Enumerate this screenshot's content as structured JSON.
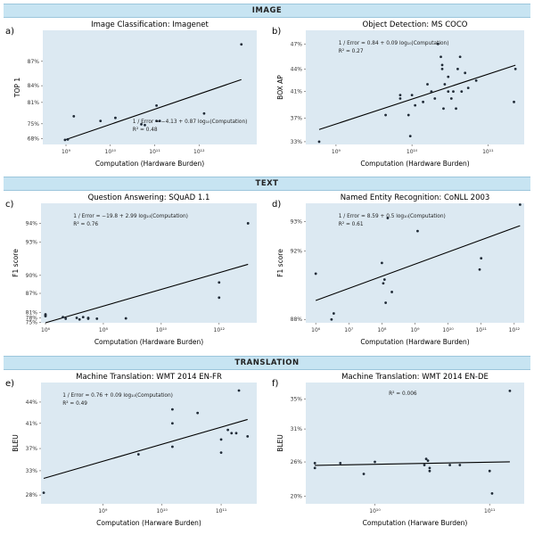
{
  "sections": [
    "IMAGE",
    "TEXT",
    "TRANSLATION"
  ],
  "colors": {
    "plot_bg": "#dce9f2",
    "banner_bg": "#c7e4f2",
    "line": "#000000",
    "point": "#1f2a36"
  },
  "chart_data": [
    {
      "type": "scatter",
      "panel_label": "a)",
      "title": "Image Classification: Imagenet",
      "xlabel": "Computation (Hardware Burden)",
      "ylabel": "TOP 1",
      "x_scale": "log",
      "y_scale": "reciprocal",
      "xlim": [
        300000000.0,
        20000000000000.0
      ],
      "ylim": [
        0.64,
        0.895
      ],
      "x_ticks": [
        {
          "v": 1000000000.0,
          "label": "10⁹"
        },
        {
          "v": 10000000000.0,
          "label": "10¹⁰"
        },
        {
          "v": 100000000000.0,
          "label": "10¹¹"
        },
        {
          "v": 1000000000000.0,
          "label": "10¹²"
        }
      ],
      "y_ticks": [
        {
          "v": 0.68,
          "label": "68%"
        },
        {
          "v": 0.75,
          "label": "75%"
        },
        {
          "v": 0.81,
          "label": "81%"
        },
        {
          "v": 0.84,
          "label": "84%"
        },
        {
          "v": 0.87,
          "label": "87%"
        }
      ],
      "annotation": [
        "1 / Error = −4.13 + 0.87 log₁₀(Computation)",
        "R² = 0.48"
      ],
      "fit": {
        "a": -4.13,
        "b": 0.87
      },
      "x": [
        950000000.0,
        1100000000.0,
        1500000000.0,
        6000000000.0,
        13000000000.0,
        50000000000.0,
        60000000000.0,
        110000000000.0,
        130000000000.0,
        110000000000.0,
        1300000000000.0,
        9000000000000.0
      ],
      "y": [
        0.672,
        0.675,
        0.775,
        0.76,
        0.77,
        0.748,
        0.745,
        0.76,
        0.76,
        0.803,
        0.783,
        0.885
      ]
    },
    {
      "type": "scatter",
      "panel_label": "b)",
      "title": "Object Detection: MS COCO",
      "xlabel": "Computation (Hardware Burden)",
      "ylabel": "BOX AP",
      "x_scale": "log",
      "y_scale": "reciprocal",
      "xlim": [
        400000000.0,
        300000000000.0
      ],
      "ylim": [
        0.325,
        0.485
      ],
      "x_ticks": [
        {
          "v": 1000000000.0,
          "label": "10⁹"
        },
        {
          "v": 10000000000.0,
          "label": "10¹⁰"
        },
        {
          "v": 100000000000.0,
          "label": "10¹¹"
        }
      ],
      "y_ticks": [
        {
          "v": 0.33,
          "label": "33%"
        },
        {
          "v": 0.37,
          "label": "37%"
        },
        {
          "v": 0.41,
          "label": "41%"
        },
        {
          "v": 0.44,
          "label": "44%"
        },
        {
          "v": 0.47,
          "label": "47%"
        }
      ],
      "annotation": [
        "1 / Error = 0.84 + 0.09 log₁₀(Computation)",
        "R² = 0.27"
      ],
      "fit": {
        "a": 0.84,
        "b": 0.09
      },
      "x": [
        600000000.0,
        4500000000.0,
        7000000000.0,
        7000000000.0,
        9000000000.0,
        9500000000.0,
        11000000000.0,
        14000000000.0,
        16000000000.0,
        18000000000.0,
        20000000000.0,
        22000000000.0,
        24000000000.0,
        25000000000.0,
        26000000000.0,
        27000000000.0,
        30000000000.0,
        33000000000.0,
        35000000000.0,
        38000000000.0,
        40000000000.0,
        43000000000.0,
        45000000000.0,
        50000000000.0,
        55000000000.0,
        70000000000.0,
        220000000000.0,
        230000000000.0,
        25000000000.0,
        30000000000.0,
        10000000000.0
      ],
      "y": [
        0.33,
        0.375,
        0.4,
        0.405,
        0.375,
        0.34,
        0.39,
        0.395,
        0.42,
        0.41,
        0.4,
        0.47,
        0.455,
        0.44,
        0.385,
        0.42,
        0.43,
        0.4,
        0.41,
        0.385,
        0.44,
        0.455,
        0.41,
        0.435,
        0.415,
        0.425,
        0.395,
        0.44,
        0.445,
        0.41,
        0.405
      ]
    },
    {
      "type": "scatter",
      "panel_label": "c)",
      "title": "Question Answering: SQuAD 1.1",
      "xlabel": "Computation (Hardware Burden)",
      "ylabel": "F1 score",
      "x_scale": "log",
      "y_scale": "reciprocal",
      "xlim": [
        700000.0,
        20000000000000.0
      ],
      "ylim": [
        0.745,
        0.948
      ],
      "x_ticks": [
        {
          "v": 1000000.0,
          "label": "10⁶"
        },
        {
          "v": 100000000.0,
          "label": "10⁸"
        },
        {
          "v": 10000000000.0,
          "label": "10¹⁰"
        },
        {
          "v": 1000000000000.0,
          "label": "10¹²"
        }
      ],
      "y_ticks": [
        {
          "v": 0.75,
          "label": "75%"
        },
        {
          "v": 0.78,
          "label": "78%"
        },
        {
          "v": 0.81,
          "label": "81%"
        },
        {
          "v": 0.87,
          "label": "87%"
        },
        {
          "v": 0.9,
          "label": "90%"
        },
        {
          "v": 0.93,
          "label": "93%"
        },
        {
          "v": 0.94,
          "label": "94%"
        }
      ],
      "annotation": [
        "1 / Error = −19.8 + 2.99 log₁₀(Computation)",
        "R² = 0.76"
      ],
      "fit": {
        "a": -19.8,
        "b": 2.99
      },
      "x": [
        1000000.0,
        1000000.0,
        1000000.0,
        4000000.0,
        5000000.0,
        12000000.0,
        15000000.0,
        20000000.0,
        30000000.0,
        30000000.0,
        60000000.0,
        600000000.0,
        1000000000000.0,
        1000000000000.0,
        10000000000000.0
      ],
      "y": [
        0.8,
        0.79,
        0.795,
        0.785,
        0.775,
        0.78,
        0.77,
        0.785,
        0.775,
        0.78,
        0.775,
        0.777,
        0.89,
        0.86,
        0.94
      ]
    },
    {
      "type": "scatter",
      "panel_label": "d)",
      "title": "Named Entity Recognition: CoNLL 2003",
      "xlabel": "Computation (Hardware Burden)",
      "ylabel": "F1 score",
      "x_scale": "log",
      "y_scale": "reciprocal",
      "xlim": [
        500000.0,
        2000000000000.0
      ],
      "ylim": [
        0.877,
        0.935
      ],
      "x_ticks": [
        {
          "v": 1000000.0,
          "label": "10⁶"
        },
        {
          "v": 10000000.0,
          "label": "10⁷"
        },
        {
          "v": 100000000.0,
          "label": "10⁸"
        },
        {
          "v": 1000000000.0,
          "label": "10⁹"
        },
        {
          "v": 10000000000.0,
          "label": "10¹⁰"
        },
        {
          "v": 100000000000.0,
          "label": "10¹¹"
        },
        {
          "v": 1000000000000.0,
          "label": "10¹²"
        }
      ],
      "y_ticks": [
        {
          "v": 0.88,
          "label": "88%"
        },
        {
          "v": 0.92,
          "label": "92%"
        },
        {
          "v": 0.93,
          "label": "93%"
        }
      ],
      "annotation": [
        "1 / Error = 8.59 + 0.5 log₁₀(Computation)",
        "R² = 0.61"
      ],
      "fit": {
        "a": 8.59,
        "b": 0.5
      },
      "x": [
        1000000.0,
        3000000.0,
        3500000.0,
        100000000.0,
        110000000.0,
        120000000.0,
        130000000.0,
        150000000.0,
        200000000.0,
        1200000000.0,
        90000000000.0,
        100000000000.0,
        1500000000000.0
      ],
      "y": [
        0.91,
        0.88,
        0.885,
        0.915,
        0.905,
        0.907,
        0.893,
        0.931,
        0.9,
        0.927,
        0.912,
        0.917,
        0.935
      ]
    },
    {
      "type": "scatter",
      "panel_label": "e)",
      "title": "Machine Translation: WMT 2014 EN-FR",
      "xlabel": "Computation (Harware Burden)",
      "ylabel": "BLEU",
      "x_scale": "log",
      "y_scale": "reciprocal",
      "xlim": [
        90000000.0,
        400000000000.0
      ],
      "ylim": [
        0.26,
        0.465
      ],
      "x_ticks": [
        {
          "v": 1000000000.0,
          "label": "10⁹"
        },
        {
          "v": 10000000000.0,
          "label": "10¹⁰"
        },
        {
          "v": 100000000000.0,
          "label": "10¹¹"
        }
      ],
      "y_ticks": [
        {
          "v": 0.28,
          "label": "28%"
        },
        {
          "v": 0.33,
          "label": "33%"
        },
        {
          "v": 0.37,
          "label": "37%"
        },
        {
          "v": 0.41,
          "label": "41%"
        },
        {
          "v": 0.44,
          "label": "44%"
        }
      ],
      "annotation": [
        "1 / Error = 0.76 + 0.09 log₁₀(Computation)",
        "R² = 0.49"
      ],
      "fit": {
        "a": 0.76,
        "b": 0.09
      },
      "x": [
        100000000.0,
        4000000000.0,
        15000000000.0,
        15000000000.0,
        15000000000.0,
        40000000000.0,
        100000000000.0,
        100000000000.0,
        130000000000.0,
        150000000000.0,
        180000000000.0,
        200000000000.0,
        280000000000.0
      ],
      "y": [
        0.285,
        0.36,
        0.373,
        0.41,
        0.43,
        0.425,
        0.363,
        0.385,
        0.4,
        0.395,
        0.395,
        0.455,
        0.39
      ]
    },
    {
      "type": "scatter",
      "panel_label": "f)",
      "title": "Machine Translation: WMT 2014 EN-DE",
      "xlabel": "Computation (Harware Burden)",
      "ylabel": "BLEU",
      "x_scale": "log",
      "y_scale": "reciprocal",
      "xlim": [
        2500000000.0,
        200000000000.0
      ],
      "ylim": [
        0.185,
        0.37
      ],
      "x_ticks": [
        {
          "v": 10000000000.0,
          "label": "10¹⁰"
        },
        {
          "v": 100000000000.0,
          "label": "10¹¹"
        }
      ],
      "y_ticks": [
        {
          "v": 0.2,
          "label": "20%"
        },
        {
          "v": 0.26,
          "label": "26%"
        },
        {
          "v": 0.31,
          "label": "31%"
        },
        {
          "v": 0.35,
          "label": "35%"
        }
      ],
      "annotation": [
        "R² = 0.006"
      ],
      "fit": {
        "a": 4.3,
        "b": -0.02,
        "flat_bleu": 0.258
      },
      "x": [
        3000000000.0,
        3000000000.0,
        5000000000.0,
        8000000000.0,
        10000000000.0,
        27000000000.0,
        28000000000.0,
        29000000000.0,
        30000000000.0,
        30000000000.0,
        45000000000.0,
        55000000000.0,
        100000000000.0,
        105000000000.0,
        150000000000.0
      ],
      "y": [
        0.258,
        0.25,
        0.258,
        0.24,
        0.26,
        0.255,
        0.265,
        0.262,
        0.25,
        0.245,
        0.255,
        0.255,
        0.245,
        0.205,
        0.36
      ]
    }
  ]
}
